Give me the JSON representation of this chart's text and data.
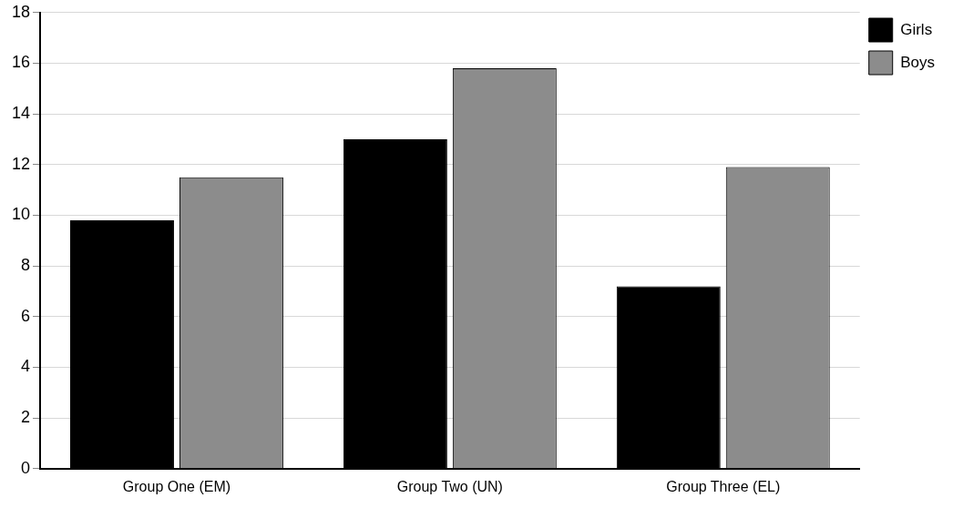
{
  "chart_data": {
    "type": "bar",
    "categories": [
      "Group One (EM)",
      "Group Two (UN)",
      "Group Three (EL)"
    ],
    "series": [
      {
        "name": "Girls",
        "color": "#000000",
        "values": [
          9.8,
          13,
          7.2
        ]
      },
      {
        "name": "Boys",
        "color": "#8c8c8c",
        "values": [
          11.5,
          15.8,
          11.9
        ]
      }
    ],
    "ylim": [
      0,
      18
    ],
    "yticks": [
      0,
      2,
      4,
      6,
      8,
      10,
      12,
      14,
      16,
      18
    ],
    "grid": "y",
    "legend": "top right"
  }
}
